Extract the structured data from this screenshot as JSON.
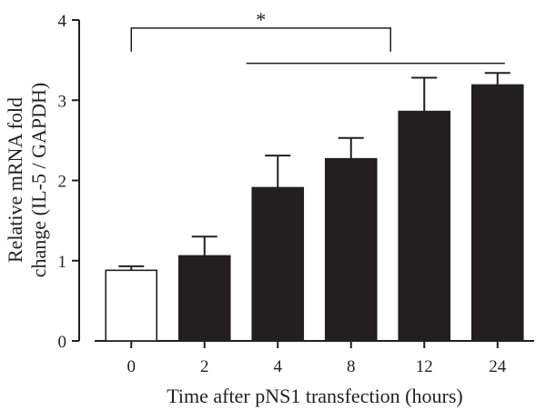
{
  "chart_data": {
    "type": "bar",
    "categories": [
      "0",
      "2",
      "4",
      "8",
      "12",
      "24"
    ],
    "values": [
      0.88,
      1.06,
      1.91,
      2.27,
      2.86,
      3.19
    ],
    "errors": [
      0.05,
      0.24,
      0.4,
      0.26,
      0.42,
      0.15
    ],
    "bar_colors": [
      "#ffffff",
      "#231f20",
      "#231f20",
      "#231f20",
      "#231f20",
      "#231f20"
    ],
    "title": "",
    "xlabel": "Time after pNS1 transfection (hours)",
    "ylabel": [
      "Relative mRNA fold",
      "change (IL-5 / GAPDH)"
    ],
    "ylim": [
      0,
      4
    ],
    "yticks": [
      "0",
      "1",
      "2",
      "3",
      "4"
    ],
    "grid": false,
    "annotations": {
      "bracket": {
        "from_category": "0",
        "to_category": "12",
        "level": 3.9,
        "label": "*"
      },
      "span_line": {
        "from_category": "4",
        "to_category": "24",
        "level": 3.46
      }
    }
  }
}
